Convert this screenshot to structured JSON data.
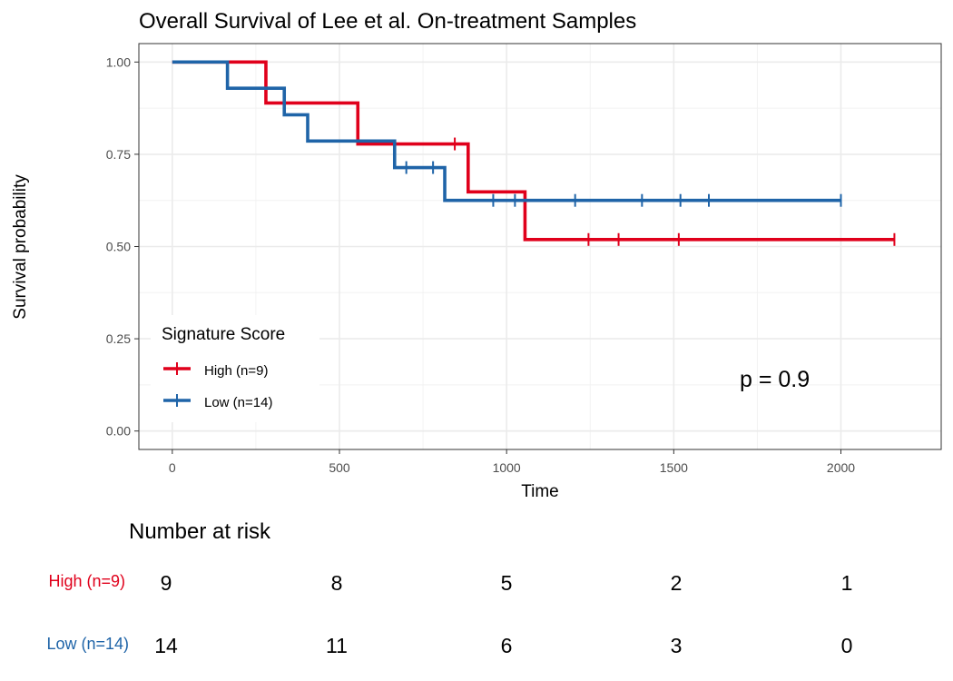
{
  "chart_data": {
    "type": "line",
    "subtype": "kaplan-meier",
    "title": "Overall Survival of Lee et al. On-treatment Samples",
    "xlabel": "Time",
    "ylabel": "Survival probability",
    "xlim": [
      -100,
      2300
    ],
    "ylim": [
      -0.05,
      1.05
    ],
    "x_ticks": [
      0,
      500,
      1000,
      1500,
      2000
    ],
    "x_tick_labels": [
      "0",
      "500",
      "1000",
      "1500",
      "2000"
    ],
    "y_ticks": [
      0,
      0.25,
      0.5,
      0.75,
      1.0
    ],
    "y_tick_labels": [
      "0.00",
      "0.25",
      "0.50",
      "0.75",
      "1.00"
    ],
    "grid": true,
    "legend": {
      "title": "Signature Score",
      "position": "bottom-left"
    },
    "annotation": "p = 0.9",
    "series": [
      {
        "name": "High (n=9)",
        "color": "#e0001b",
        "steps": [
          [
            0,
            1.0
          ],
          [
            280,
            0.889
          ],
          [
            555,
            0.778
          ],
          [
            885,
            0.648
          ],
          [
            1055,
            0.519
          ],
          [
            2160,
            0.519
          ]
        ],
        "censor_x": [
          845,
          1245,
          1335,
          1515,
          2160
        ],
        "censor_y": [
          0.778,
          0.519,
          0.519,
          0.519,
          0.519
        ]
      },
      {
        "name": "Low (n=14)",
        "color": "#1f64a8",
        "steps": [
          [
            0,
            1.0
          ],
          [
            165,
            0.929
          ],
          [
            335,
            0.857
          ],
          [
            405,
            0.786
          ],
          [
            665,
            0.714
          ],
          [
            815,
            0.625
          ],
          [
            2000,
            0.625
          ]
        ],
        "censor_x": [
          700,
          780,
          960,
          1025,
          1205,
          1405,
          1520,
          1605,
          2000
        ],
        "censor_y": [
          0.714,
          0.714,
          0.625,
          0.625,
          0.625,
          0.625,
          0.625,
          0.625,
          0.625
        ]
      }
    ],
    "risk_table": {
      "title": "Number at risk",
      "times": [
        0,
        500,
        1000,
        1500,
        2000
      ],
      "rows": [
        {
          "label": "High (n=9)",
          "color": "#e0001b",
          "counts": [
            "9",
            "8",
            "5",
            "2",
            "1"
          ]
        },
        {
          "label": "Low (n=14)",
          "color": "#1f64a8",
          "counts": [
            "14",
            "11",
            "6",
            "3",
            "0"
          ]
        }
      ]
    }
  }
}
